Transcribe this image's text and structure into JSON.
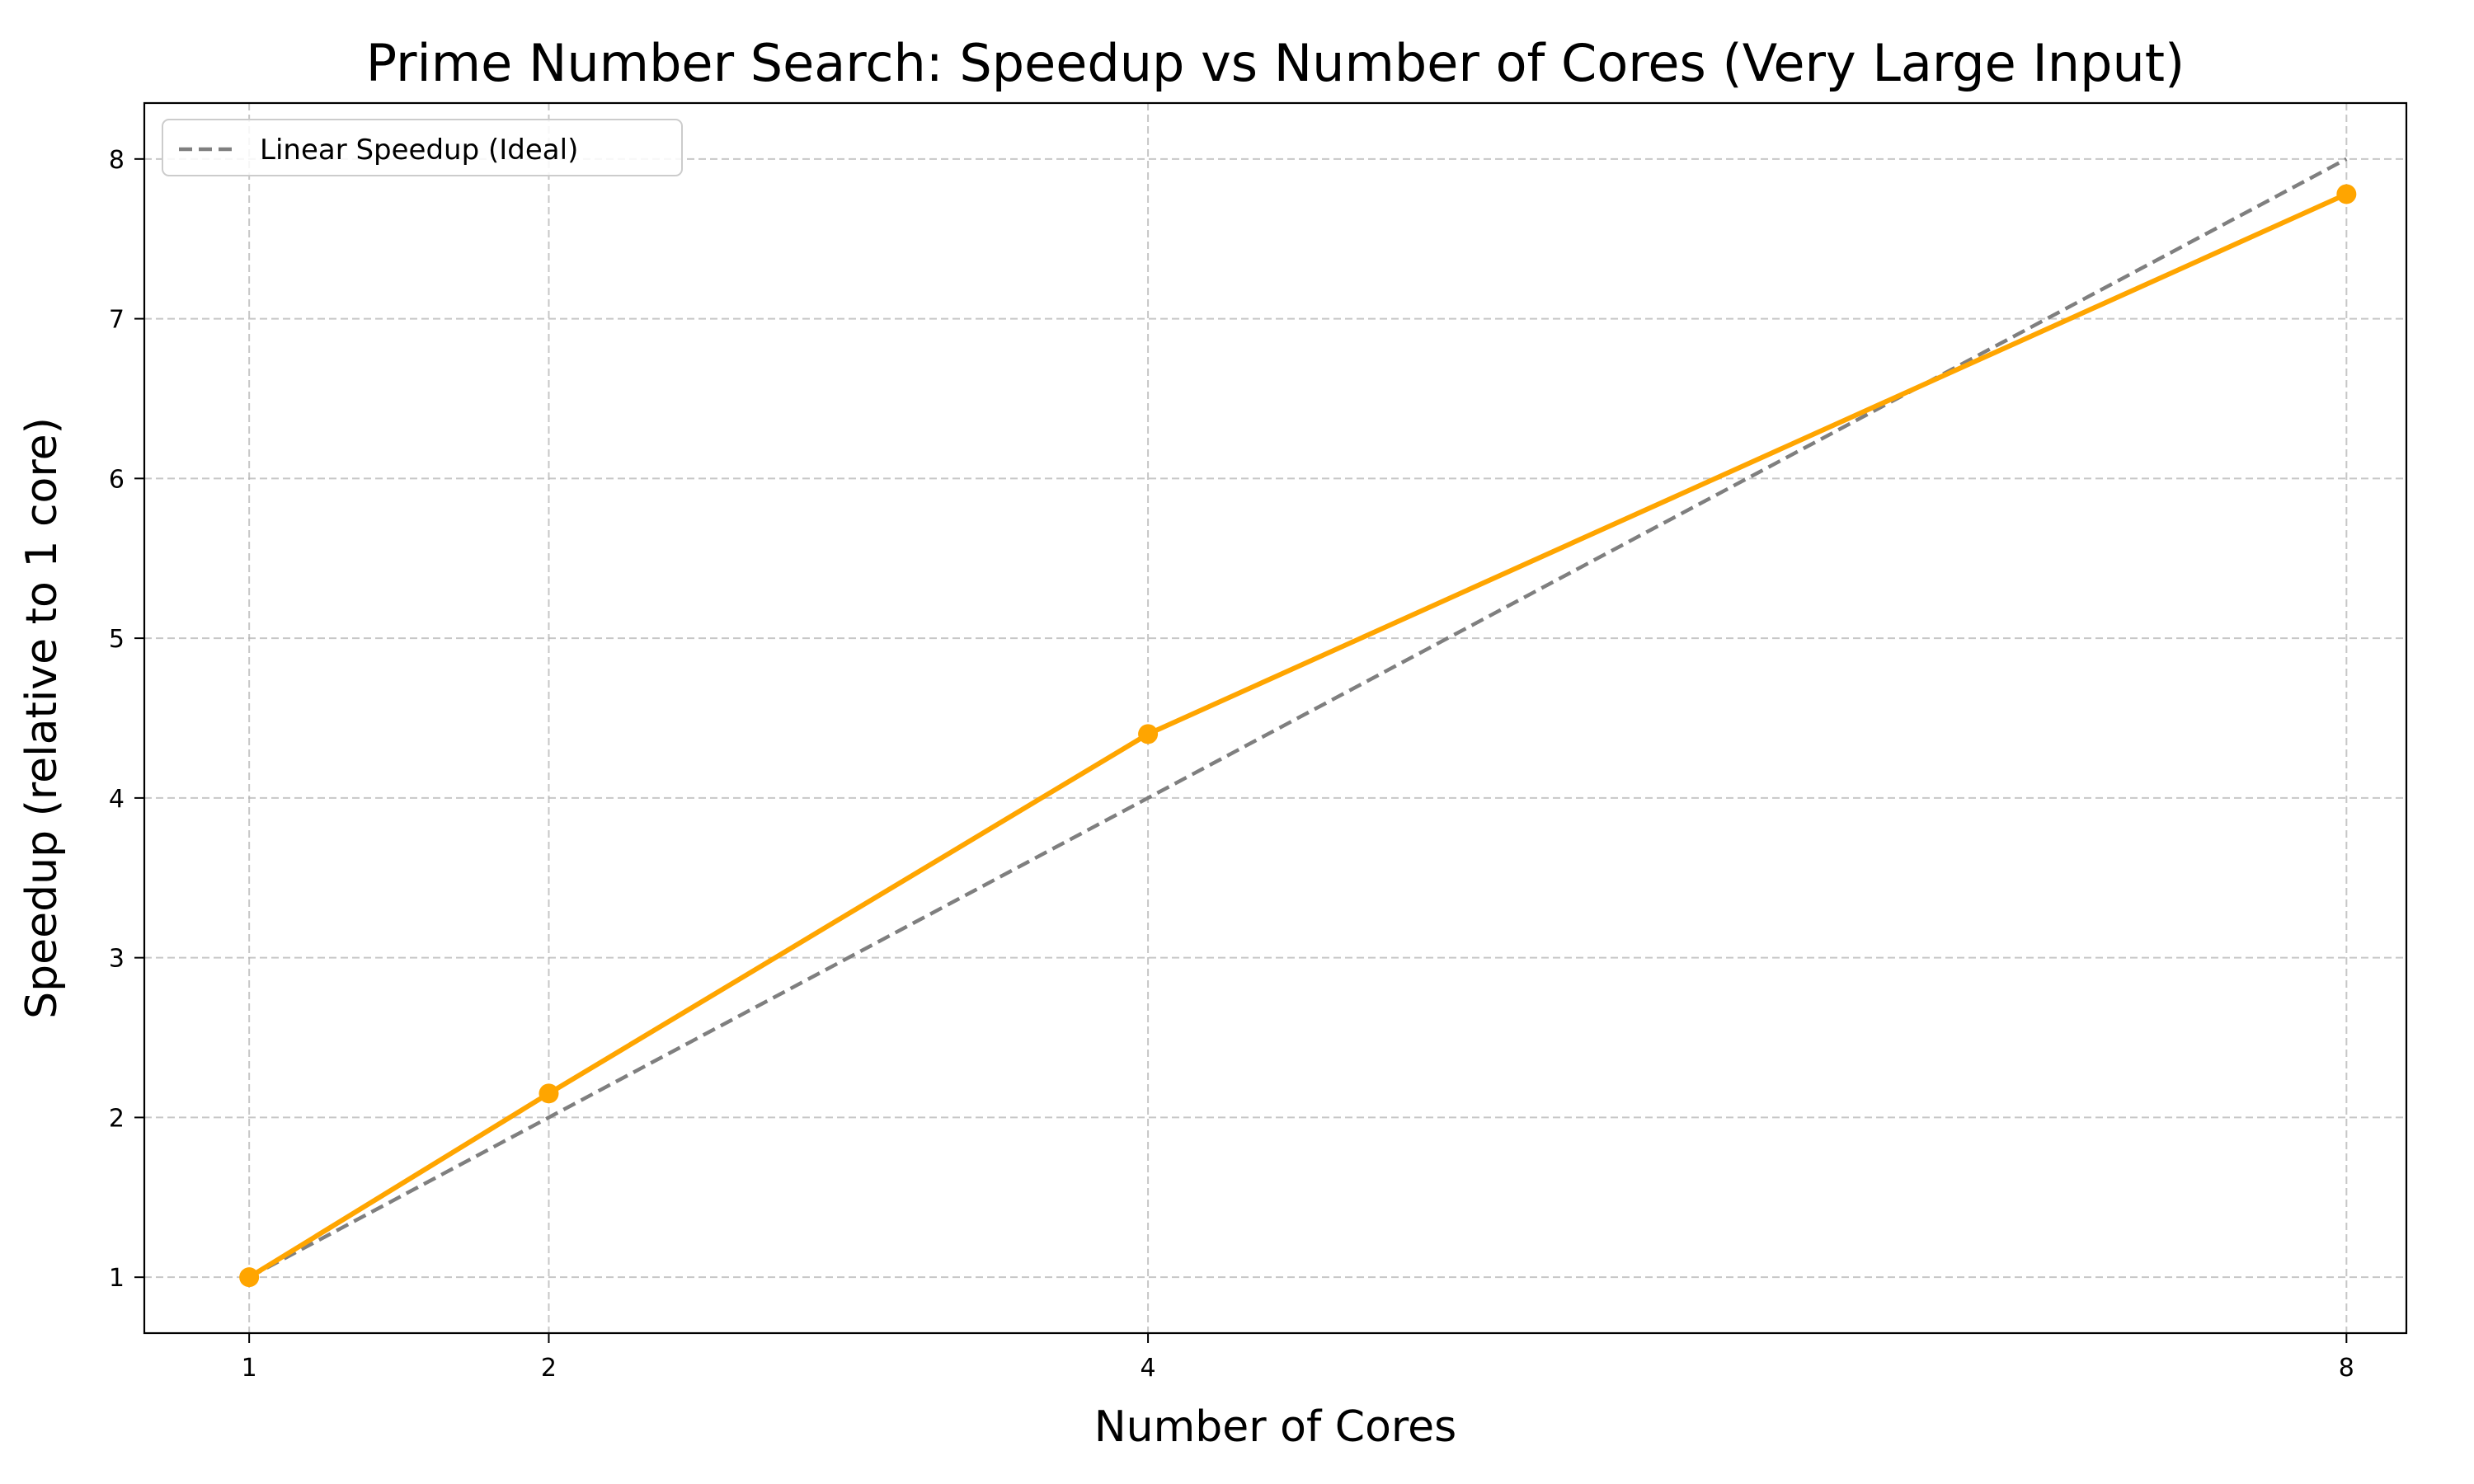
{
  "chart_data": {
    "type": "line",
    "title": "Prime Number Search: Speedup vs Number of Cores (Very Large Input)",
    "xlabel": "Number of Cores",
    "ylabel": "Speedup (relative to 1 core)",
    "xlim": [
      0.65,
      8.2
    ],
    "ylim": [
      0.65,
      8.35
    ],
    "xticks": [
      1,
      2,
      4,
      8
    ],
    "yticks": [
      1,
      2,
      3,
      4,
      5,
      6,
      7,
      8
    ],
    "grid": true,
    "legend_position": "top-left",
    "series": [
      {
        "name": "",
        "style": "solid",
        "marker": "circle",
        "color": "#FFA500",
        "x": [
          1,
          2,
          4,
          8
        ],
        "y": [
          1.0,
          2.15,
          4.4,
          7.78
        ]
      },
      {
        "name": "Linear Speedup (Ideal)",
        "style": "dashed",
        "marker": "none",
        "color": "#7f7f7f",
        "x": [
          1,
          2,
          4,
          8
        ],
        "y": [
          1,
          2,
          4,
          8
        ]
      }
    ]
  }
}
